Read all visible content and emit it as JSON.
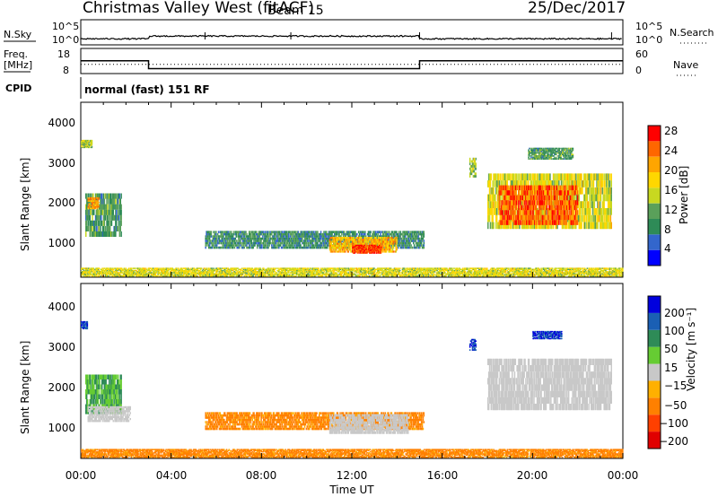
{
  "header": {
    "station": "Christmas Valley West (fitACF)",
    "beam": "Beam 15",
    "date": "25/Dec/2017"
  },
  "noise_panel": {
    "left_label": "N.Sky",
    "right_label": "N.Search",
    "left_ticks": [
      "10^5",
      "10^0"
    ],
    "right_ticks": [
      "10^5",
      "10^0"
    ]
  },
  "freq_panel": {
    "left_label_line1": "Freq.",
    "left_label_line2": "[MHz]",
    "left_ticks": [
      "18",
      "8"
    ],
    "right_ticks": [
      "60",
      "0"
    ],
    "right_label": "Nave",
    "cpid_label": "CPID",
    "cpid_text": "normal (fast) 151 RF"
  },
  "time_axis": {
    "label": "Time UT",
    "ticks": [
      "00:00",
      "04:00",
      "08:00",
      "12:00",
      "16:00",
      "20:00",
      "00:00"
    ]
  },
  "power_panel": {
    "ylabel": "Slant Range [km]",
    "yticks": [
      "4000",
      "3000",
      "2000",
      "1000"
    ],
    "colorbar_label": "Power [dB]",
    "colorbar_ticks": [
      "28",
      "24",
      "20",
      "16",
      "12",
      "8",
      "4"
    ],
    "colors": [
      "#0000ff",
      "#3366cc",
      "#2e8b57",
      "#5aa05a",
      "#c8d820",
      "#ffd700",
      "#ffa500",
      "#ff6600",
      "#ff0000"
    ]
  },
  "velocity_panel": {
    "ylabel": "Slant Range [km]",
    "yticks": [
      "4000",
      "3000",
      "2000",
      "1000"
    ],
    "colorbar_label": "Velocity [m s⁻¹]",
    "colorbar_ticks": [
      "200",
      "100",
      "50",
      "15",
      "−15",
      "−50",
      "−100",
      "−200"
    ],
    "colors": [
      "#0000dd",
      "#1a5fb4",
      "#2e8b57",
      "#66cc33",
      "#c8c8c8",
      "#ffb000",
      "#ff8000",
      "#ff4000",
      "#e00000"
    ]
  },
  "chart_data": {
    "type": "heatmap",
    "xlim": [
      0,
      24
    ],
    "ylim_km": [
      180,
      4600
    ],
    "freq_segments": [
      {
        "start": 0,
        "end": 3,
        "freq_mhz": 14.5
      },
      {
        "start": 3,
        "end": 15,
        "freq_mhz": 10.5
      },
      {
        "start": 15,
        "end": 24,
        "freq_mhz": 14.5
      }
    ],
    "nave_level": 22,
    "power_regions": [
      {
        "t0": 0.0,
        "t1": 0.5,
        "r0": 3450,
        "r1": 3650,
        "db": 14
      },
      {
        "t0": 0.2,
        "t1": 1.8,
        "r0": 1200,
        "r1": 2300,
        "db": 10
      },
      {
        "t0": 0.3,
        "t1": 0.8,
        "r0": 1900,
        "r1": 2200,
        "db": 22
      },
      {
        "t0": 5.5,
        "t1": 15.2,
        "r0": 900,
        "r1": 1350,
        "db": 9
      },
      {
        "t0": 11.0,
        "t1": 14.0,
        "r0": 800,
        "r1": 1200,
        "db": 20
      },
      {
        "t0": 12.0,
        "t1": 13.3,
        "r0": 780,
        "r1": 1000,
        "db": 27
      },
      {
        "t0": 17.2,
        "t1": 17.5,
        "r0": 2700,
        "r1": 3200,
        "db": 14
      },
      {
        "t0": 18.0,
        "t1": 23.5,
        "r0": 1400,
        "r1": 2800,
        "db": 16
      },
      {
        "t0": 18.5,
        "t1": 22.0,
        "r0": 1500,
        "r1": 2500,
        "db": 25
      },
      {
        "t0": 19.8,
        "t1": 21.8,
        "r0": 3150,
        "r1": 3450,
        "db": 10
      },
      {
        "t0": 0.0,
        "t1": 24.0,
        "r0": 200,
        "r1": 420,
        "db": 16
      }
    ],
    "velocity_regions": [
      {
        "t0": 0.0,
        "t1": 0.3,
        "r0": 3450,
        "r1": 3650,
        "v": 150
      },
      {
        "t0": 0.2,
        "t1": 1.8,
        "r0": 1300,
        "r1": 2300,
        "v": 30
      },
      {
        "t0": 0.3,
        "t1": 2.2,
        "r0": 1100,
        "r1": 1500,
        "v": 0
      },
      {
        "t0": 5.5,
        "t1": 15.2,
        "r0": 900,
        "r1": 1350,
        "v": -60
      },
      {
        "t0": 11.0,
        "t1": 14.5,
        "r0": 800,
        "r1": 1300,
        "v": 0
      },
      {
        "t0": 17.2,
        "t1": 17.5,
        "r0": 2900,
        "r1": 3200,
        "v": 150
      },
      {
        "t0": 18.0,
        "t1": 23.5,
        "r0": 1400,
        "r1": 2700,
        "v": 0
      },
      {
        "t0": 20.0,
        "t1": 21.3,
        "r0": 3200,
        "r1": 3400,
        "v": 150
      },
      {
        "t0": 0.0,
        "t1": 24.0,
        "r0": 200,
        "r1": 420,
        "v": -60
      }
    ]
  }
}
